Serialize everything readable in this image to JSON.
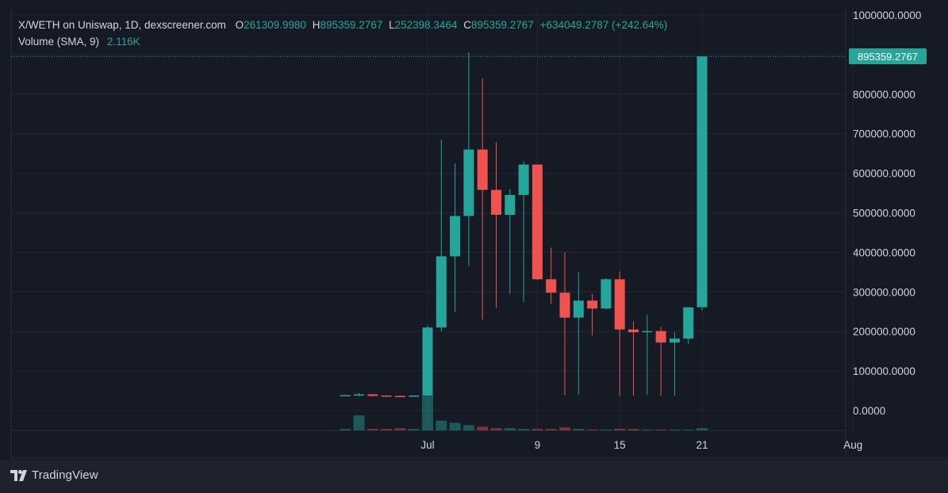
{
  "legend": {
    "symbol": "X/WETH on Uniswap, 1D, dexscreener.com",
    "open_label": "O",
    "open": "261309.9980",
    "high_label": "H",
    "high": "895359.2767",
    "low_label": "L",
    "low": "252398.3464",
    "close_label": "C",
    "close": "895359.2767",
    "change": "+634049.2787 (+242.64%)",
    "volume_label": "Volume (SMA, 9)",
    "volume_value": "2.116K"
  },
  "last_price_badge": "895359.2767",
  "branding": {
    "logo_text": "TradingView"
  },
  "colors": {
    "up": "#26a69a",
    "down": "#ef5350",
    "background": "#161a25",
    "grid": "#232734",
    "text": "#d1d4dc"
  },
  "chart_data": {
    "type": "candlestick",
    "interval": "1D",
    "y_axis": {
      "ticks": [
        "1000000.0000",
        "900000.0000",
        "800000.0000",
        "700000.0000",
        "600000.0000",
        "500000.0000",
        "400000.0000",
        "300000.0000",
        "200000.0000",
        "100000.0000",
        "0.0000"
      ],
      "tick_values": [
        1000000,
        900000,
        800000,
        700000,
        600000,
        500000,
        400000,
        300000,
        200000,
        100000,
        0
      ],
      "range": [
        -50000,
        1000000
      ]
    },
    "x_axis": {
      "ticks": [
        {
          "label": "Jul",
          "day": 0
        },
        {
          "label": "9",
          "day": 8
        },
        {
          "label": "15",
          "day": 14
        },
        {
          "label": "21",
          "day": 20
        },
        {
          "label": "Aug",
          "day": 31
        }
      ]
    },
    "candles": [
      {
        "day": -6,
        "o": 38000,
        "h": 40000,
        "l": 37000,
        "c": 39000
      },
      {
        "day": -5,
        "o": 39000,
        "h": 44000,
        "l": 36000,
        "c": 41000
      },
      {
        "day": -4,
        "o": 41000,
        "h": 42000,
        "l": 36000,
        "c": 37000
      },
      {
        "day": -3,
        "o": 38000,
        "h": 39000,
        "l": 36000,
        "c": 37000
      },
      {
        "day": -2,
        "o": 37000,
        "h": 38000,
        "l": 35000,
        "c": 36000
      },
      {
        "day": -1,
        "o": 36000,
        "h": 38000,
        "l": 35000,
        "c": 38000
      },
      {
        "day": 0,
        "o": 38000,
        "h": 215000,
        "l": 37000,
        "c": 210000
      },
      {
        "day": 1,
        "o": 210000,
        "h": 685000,
        "l": 200000,
        "c": 390000
      },
      {
        "day": 2,
        "o": 390000,
        "h": 625000,
        "l": 250000,
        "c": 492000
      },
      {
        "day": 3,
        "o": 492000,
        "h": 905000,
        "l": 365000,
        "c": 660000
      },
      {
        "day": 4,
        "o": 660000,
        "h": 840000,
        "l": 230000,
        "c": 558000
      },
      {
        "day": 5,
        "o": 558000,
        "h": 678000,
        "l": 260000,
        "c": 495000
      },
      {
        "day": 6,
        "o": 495000,
        "h": 560000,
        "l": 295000,
        "c": 545000
      },
      {
        "day": 7,
        "o": 545000,
        "h": 630000,
        "l": 275000,
        "c": 622000
      },
      {
        "day": 8,
        "o": 622000,
        "h": 622000,
        "l": 330000,
        "c": 332000
      },
      {
        "day": 9,
        "o": 332000,
        "h": 412000,
        "l": 270000,
        "c": 298000
      },
      {
        "day": 10,
        "o": 298000,
        "h": 400000,
        "l": 38000,
        "c": 235000
      },
      {
        "day": 11,
        "o": 235000,
        "h": 350000,
        "l": 40000,
        "c": 278000
      },
      {
        "day": 12,
        "o": 278000,
        "h": 295000,
        "l": 190000,
        "c": 258000
      },
      {
        "day": 13,
        "o": 258000,
        "h": 335000,
        "l": 255000,
        "c": 332000
      },
      {
        "day": 14,
        "o": 332000,
        "h": 352000,
        "l": 38000,
        "c": 205000
      },
      {
        "day": 15,
        "o": 205000,
        "h": 225000,
        "l": 38000,
        "c": 198000
      },
      {
        "day": 16,
        "o": 199000,
        "h": 242000,
        "l": 40000,
        "c": 201000
      },
      {
        "day": 17,
        "o": 201000,
        "h": 212000,
        "l": 38000,
        "c": 172000
      },
      {
        "day": 18,
        "o": 172000,
        "h": 198000,
        "l": 38000,
        "c": 182000
      },
      {
        "day": 19,
        "o": 182000,
        "h": 262000,
        "l": 168000,
        "c": 261000
      },
      {
        "day": 20,
        "o": 261310,
        "h": 895359,
        "l": 252398,
        "c": 895359
      }
    ],
    "volume": [
      {
        "day": -6,
        "v": 0.2
      },
      {
        "day": -5,
        "v": 2.0
      },
      {
        "day": -4,
        "v": 0.2
      },
      {
        "day": -3,
        "v": 0.2
      },
      {
        "day": -2,
        "v": 0.3
      },
      {
        "day": -1,
        "v": 0.2
      },
      {
        "day": 0,
        "v": 4.6
      },
      {
        "day": 1,
        "v": 1.3
      },
      {
        "day": 2,
        "v": 1.0
      },
      {
        "day": 3,
        "v": 0.7
      },
      {
        "day": 4,
        "v": 0.5
      },
      {
        "day": 5,
        "v": 0.3
      },
      {
        "day": 6,
        "v": 0.3
      },
      {
        "day": 7,
        "v": 0.2
      },
      {
        "day": 8,
        "v": 0.2
      },
      {
        "day": 9,
        "v": 0.2
      },
      {
        "day": 10,
        "v": 0.4
      },
      {
        "day": 11,
        "v": 0.2
      },
      {
        "day": 12,
        "v": 0.1
      },
      {
        "day": 13,
        "v": 0.1
      },
      {
        "day": 14,
        "v": 0.2
      },
      {
        "day": 15,
        "v": 0.2
      },
      {
        "day": 16,
        "v": 0.1
      },
      {
        "day": 17,
        "v": 0.1
      },
      {
        "day": 18,
        "v": 0.1
      },
      {
        "day": 19,
        "v": 0.1
      },
      {
        "day": 20,
        "v": 0.3
      }
    ],
    "last_price": 895359.2767
  }
}
